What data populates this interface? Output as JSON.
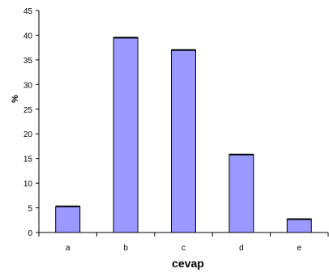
{
  "chart_data": {
    "type": "bar",
    "categories": [
      "a",
      "b",
      "c",
      "d",
      "e"
    ],
    "values": [
      5.3,
      39.5,
      37.0,
      15.8,
      2.7
    ],
    "xlabel": "cevap",
    "ylabel": "%",
    "ylim": [
      0,
      45
    ],
    "yticks": [
      0,
      5,
      10,
      15,
      20,
      25,
      30,
      35,
      40,
      45
    ],
    "grid": false,
    "bar_color": "#9999ff",
    "bar_edge_color": "#000000"
  }
}
